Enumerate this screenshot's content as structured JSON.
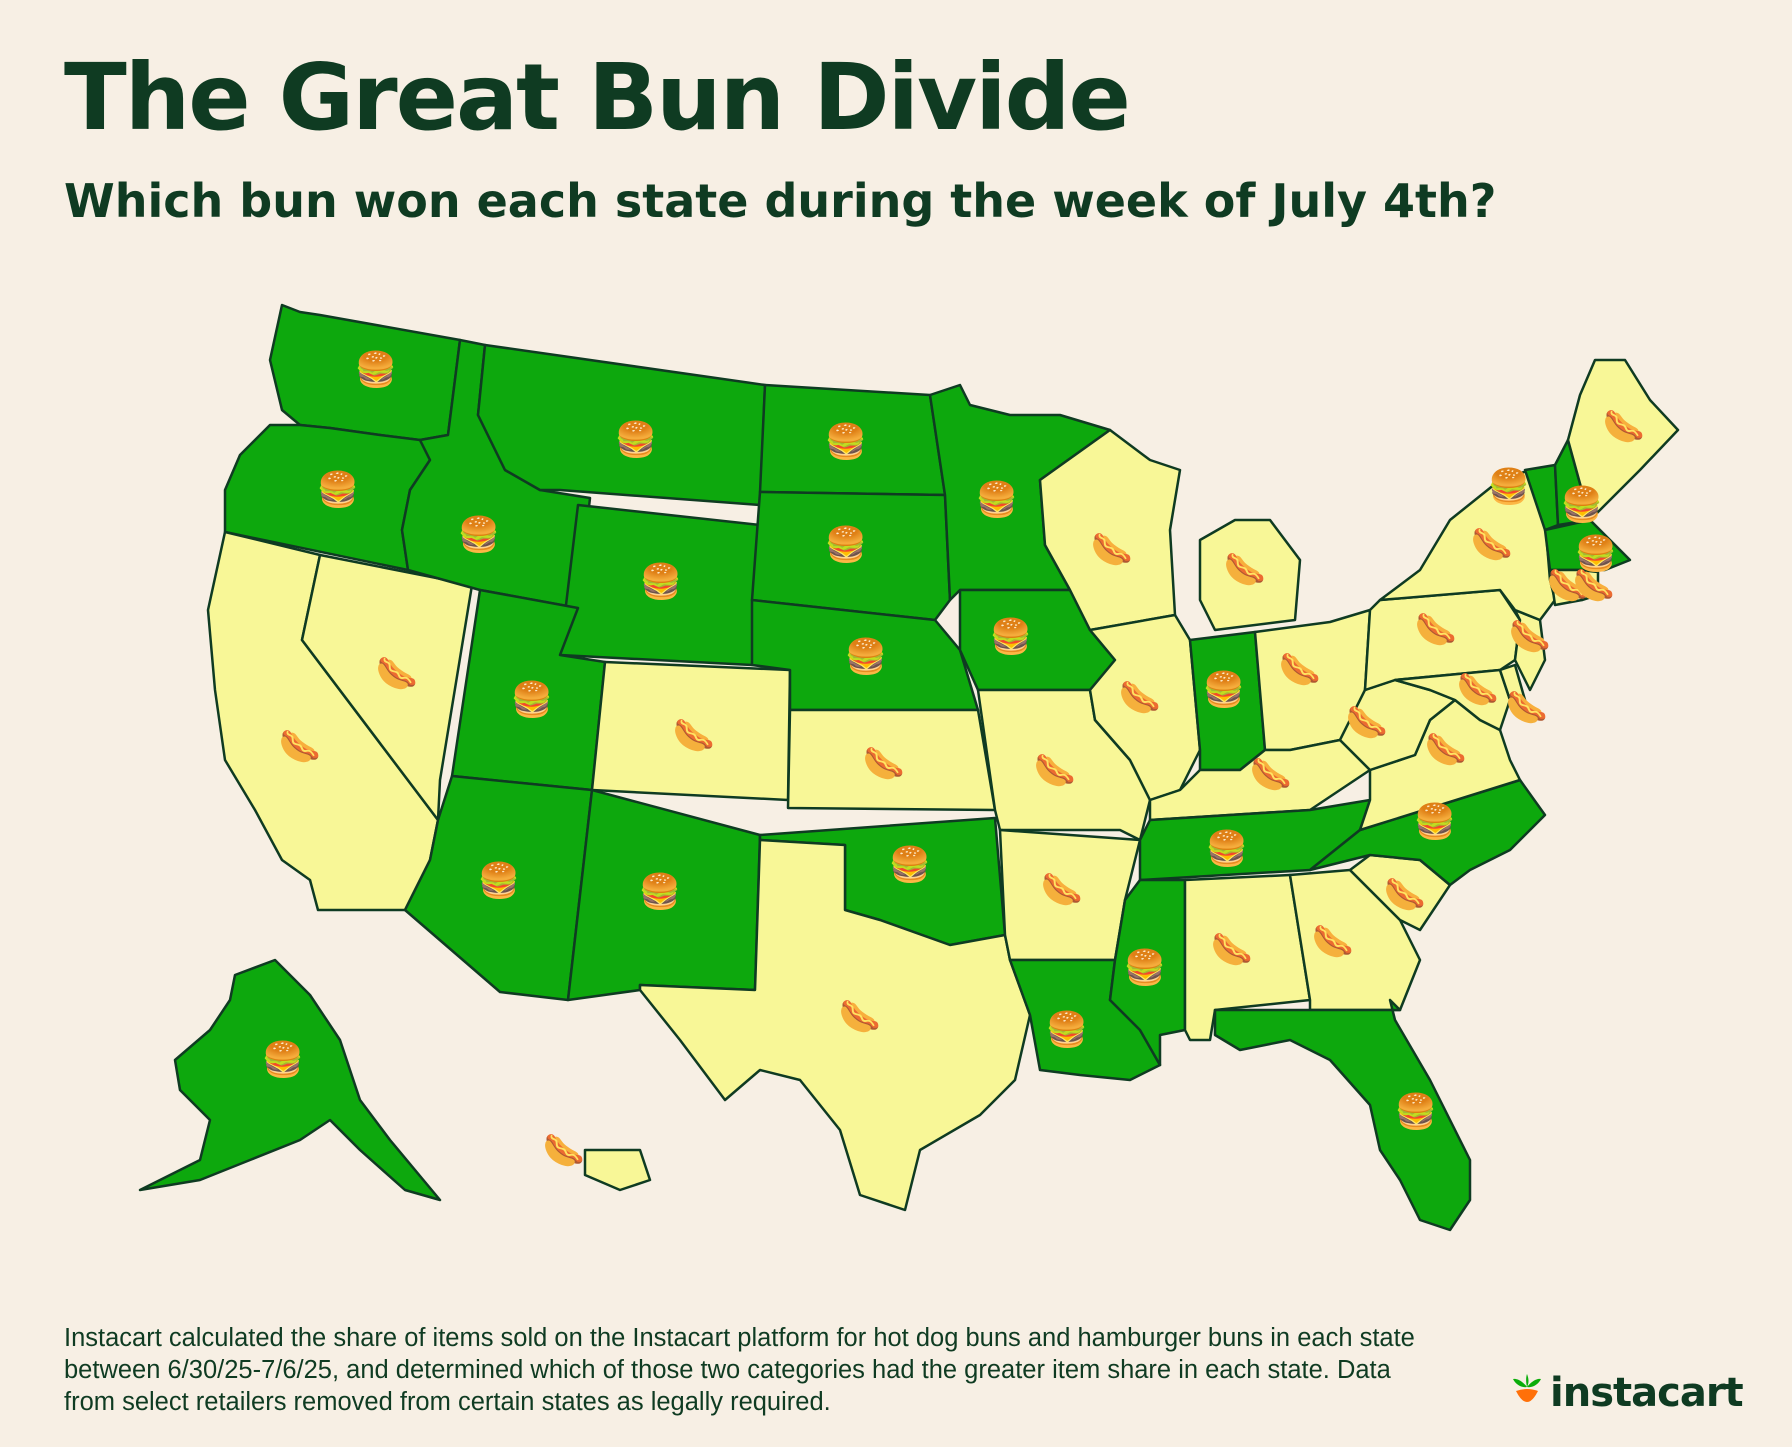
{
  "header": {
    "title": "The Great Bun Divide",
    "subtitle": "Which bun won each state during the week of July 4th?"
  },
  "legend_colors": {
    "hamburger": "#0da80d",
    "hotdog": "#f8f797",
    "outline": "#0f3b22",
    "background": "#f7efe4"
  },
  "icons": {
    "hamburger": "hamburger-icon",
    "hotdog": "hotdog-icon"
  },
  "winners": {
    "WA": "hamburger",
    "OR": "hamburger",
    "ID": "hamburger",
    "MT": "hamburger",
    "ND": "hamburger",
    "SD": "hamburger",
    "WY": "hamburger",
    "NE": "hamburger",
    "MN": "hamburger",
    "IA": "hamburger",
    "UT": "hamburger",
    "AZ": "hamburger",
    "NM": "hamburger",
    "OK": "hamburger",
    "IN": "hamburger",
    "TN": "hamburger",
    "NC": "hamburger",
    "MS": "hamburger",
    "LA": "hamburger",
    "FL": "hamburger",
    "VT": "hamburger",
    "NH": "hamburger",
    "MA": "hamburger",
    "AK": "hamburger",
    "CA": "hotdog",
    "NV": "hotdog",
    "CO": "hotdog",
    "KS": "hotdog",
    "TX": "hotdog",
    "MO": "hotdog",
    "AR": "hotdog",
    "WI": "hotdog",
    "IL": "hotdog",
    "MI": "hotdog",
    "OH": "hotdog",
    "KY": "hotdog",
    "AL": "hotdog",
    "GA": "hotdog",
    "SC": "hotdog",
    "VA": "hotdog",
    "WV": "hotdog",
    "MD": "hotdog",
    "DE": "hotdog",
    "PA": "hotdog",
    "NJ": "hotdog",
    "NY": "hotdog",
    "CT": "hotdog",
    "RI": "hotdog",
    "ME": "hotdog",
    "HI": "hotdog"
  },
  "footnote": "Instacart calculated the share of items sold on the Instacart platform for hot dog buns and hamburger buns in each state between 6/30/25-7/6/25, and determined which of those two categories had the greater item share in each state. Data from select retailers removed from certain states as legally required.",
  "brand": {
    "name": "instacart",
    "logo_icon": "carrot-icon"
  }
}
